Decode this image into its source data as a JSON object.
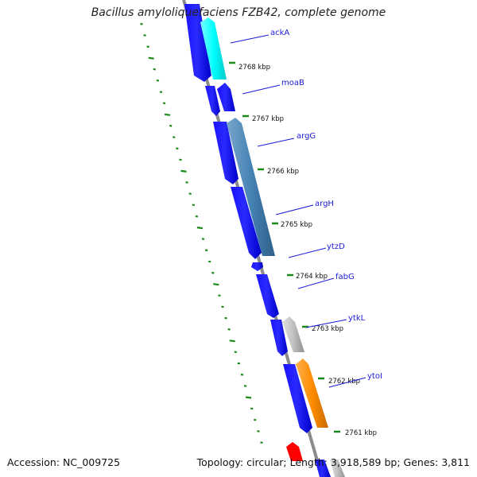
{
  "title": "Bacillus amyloliquefaciens FZB42, complete genome",
  "footer": {
    "accession": "Accession: NC_009725",
    "summary": "Topology: circular; Length: 3,918,589 bp; Genes: 3,811"
  },
  "colors": {
    "background": "#ffffff",
    "backbone": "#8a8a8a",
    "cds": "#0a00ff",
    "tick": "#1a8a1a",
    "label": "#1a1ad6",
    "ackA": "#00ffff",
    "argG_argH": "#4682b4",
    "ytkL": "#c0c0c0",
    "ytoI": "#ff8c00",
    "red_feature": "#ff0000"
  },
  "kbp_ticks": [
    "2768 kbp",
    "2767 kbp",
    "2766 kbp",
    "2765 kbp",
    "2764 kbp",
    "2763 kbp",
    "2762 kbp",
    "2761 kbp"
  ],
  "gene_labels": [
    "ackA",
    "moaB",
    "argG",
    "argH",
    "ytzD",
    "fabG",
    "ytkL",
    "ytoI"
  ]
}
